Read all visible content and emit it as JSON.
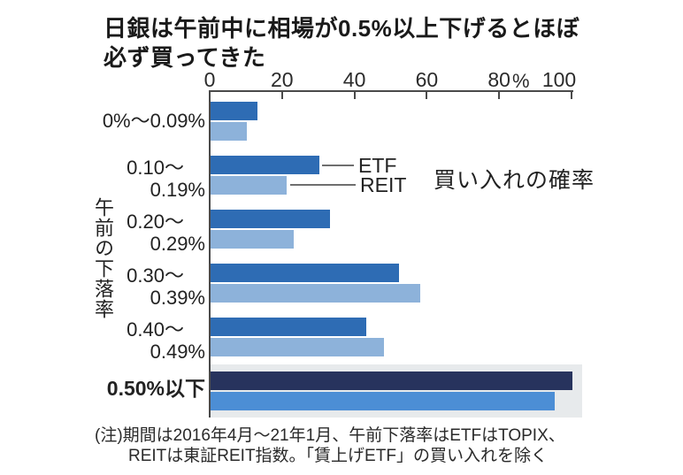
{
  "title": {
    "line1": "日銀は午前中に相場が0.5%以上下げるとほぼ",
    "line2": "必ず買ってきた"
  },
  "axis": {
    "ticks": [
      0,
      20,
      40,
      60,
      80,
      100
    ],
    "unit": "%"
  },
  "y_axis_label": "午前の下落率",
  "annotation": "買い入れの確率",
  "legend": {
    "etf": "ETF",
    "reit": "REIT"
  },
  "category_labels": [
    {
      "lines": [
        "0%〜0.09%"
      ],
      "bold": false
    },
    {
      "lines": [
        "0.10〜",
        "0.19%"
      ],
      "bold": false
    },
    {
      "lines": [
        "0.20〜",
        "0.29%"
      ],
      "bold": false
    },
    {
      "lines": [
        "0.30〜",
        "0.39%"
      ],
      "bold": false
    },
    {
      "lines": [
        "0.40〜",
        "0.49%"
      ],
      "bold": false
    },
    {
      "lines": [
        "0.50%以下"
      ],
      "bold": true
    }
  ],
  "chart_data": {
    "type": "bar",
    "orientation": "horizontal",
    "title": "日銀は午前中に相場が0.5%以上下げるとほぼ必ず買ってきた",
    "categories": [
      "0%〜0.09%",
      "0.10〜0.19%",
      "0.20〜0.29%",
      "0.30〜0.39%",
      "0.40〜0.49%",
      "0.50%以下"
    ],
    "series": [
      {
        "name": "ETF",
        "values": [
          13,
          30,
          33,
          52,
          43,
          100
        ]
      },
      {
        "name": "REIT",
        "values": [
          10,
          21,
          23,
          58,
          48,
          95
        ]
      }
    ],
    "xlim": [
      0,
      100
    ],
    "unit": "%",
    "xlabel": "買い入れの確率",
    "ylabel": "午前の下落率",
    "highlighted_category": "0.50%以下",
    "legend_position": "callout-on-second-group",
    "grid": false
  },
  "colors": {
    "etf": "#2e6cb4",
    "reit": "#8db2da",
    "etf_highlight": "#27335d",
    "reit_highlight": "#4c8ed5",
    "highlight_band": "#e7eaec",
    "axis": "#4a4a4a"
  },
  "note": {
    "line1": "(注)期間は2016年4月〜21年1月、午前下落率はETFはTOPIX、",
    "line2": "REITは東証REIT指数。「賃上げETF」の買い入れを除く"
  }
}
